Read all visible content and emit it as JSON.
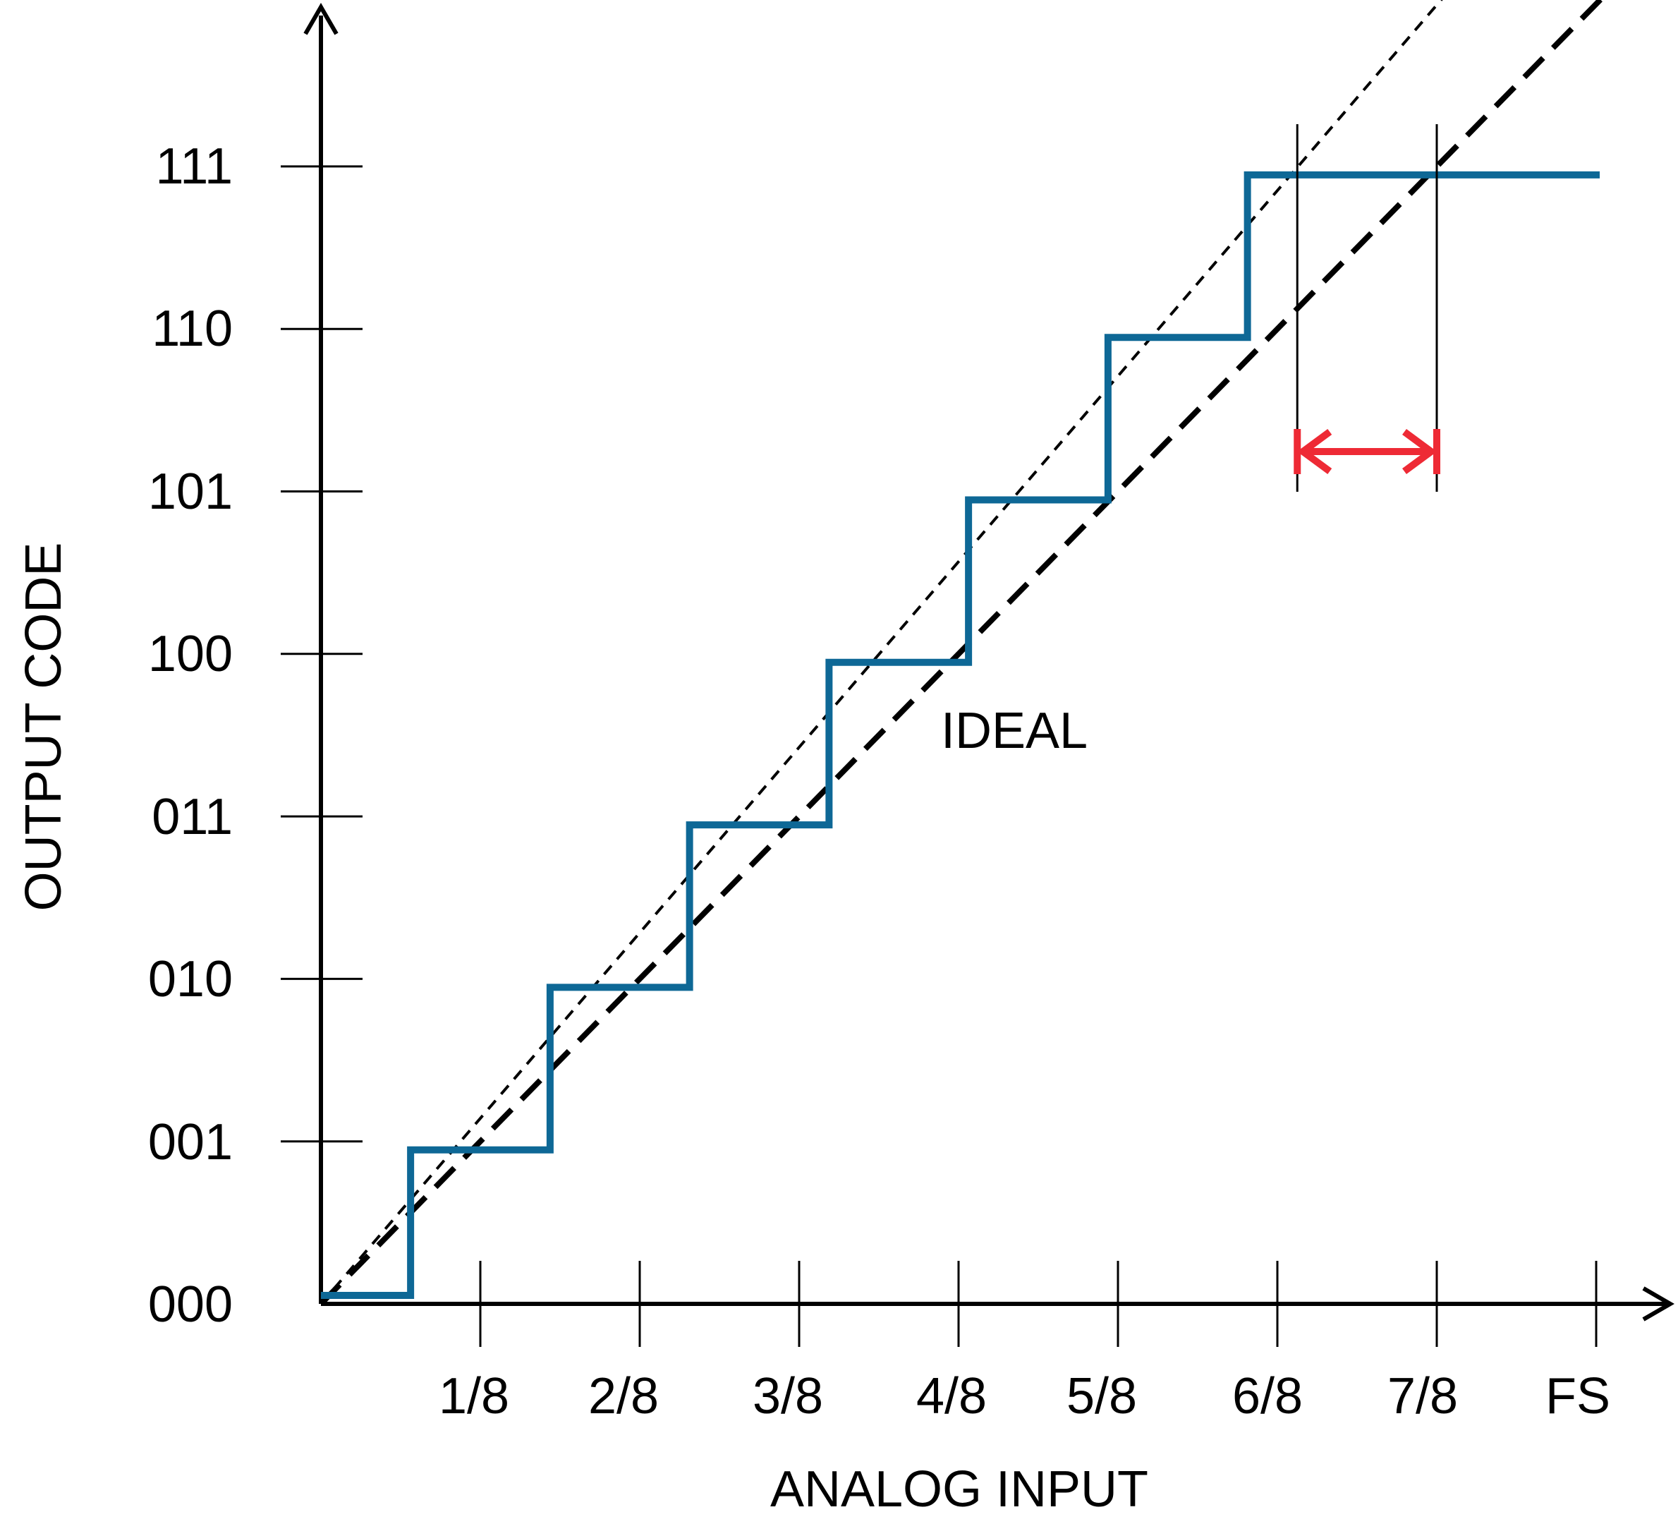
{
  "diagram": {
    "y_axis_title": "OUTPUT CODE",
    "x_axis_title": "ANALOG INPUT",
    "y_ticks": [
      "000",
      "001",
      "010",
      "011",
      "100",
      "101",
      "110",
      "111"
    ],
    "x_ticks": [
      "1/8",
      "2/8",
      "3/8",
      "4/8",
      "5/8",
      "6/8",
      "7/8",
      "FS"
    ],
    "ideal_label": "IDEAL",
    "colors": {
      "staircase": "#0e6896",
      "ideal_line": "#000000",
      "actual_line": "#000000",
      "error_arrow": "#ee2a35",
      "axes": "#000000"
    },
    "staircase_transitions": [
      0.5625,
      1.4375,
      2.3125,
      3.1875,
      4.0625,
      4.9375,
      5.8125
    ],
    "gain_error_span": {
      "from": 6.125,
      "to": 7.0
    }
  }
}
